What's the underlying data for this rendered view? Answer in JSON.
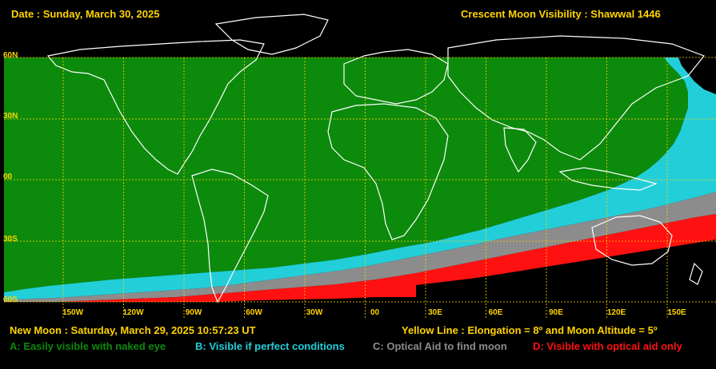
{
  "header": {
    "date_text": "Date : Sunday, March 30, 2025",
    "title": "Crescent Moon Visibility : Shawwal  1446"
  },
  "footer": {
    "new_moon": "New Moon : Saturday, March 29, 2025  10:57:23  UT",
    "yellow_line": "Yellow Line : Elongation = 8º  and Moon Altitude = 5º"
  },
  "legend": [
    {
      "label": "A: Easily visible with naked eye",
      "color": "#0c8a0c"
    },
    {
      "label": "B: Visible if perfect conditions",
      "color": "#22cfd9"
    },
    {
      "label": "C: Optical Aid to find moon",
      "color": "#8c8c8c"
    },
    {
      "label": "D: Visible with optical aid only",
      "color": "#ff1111"
    }
  ],
  "map": {
    "lat_labels": [
      "60N",
      "30N",
      "00",
      "30S",
      "60S"
    ],
    "lon_labels": [
      "150W",
      "120W",
      "90W",
      "60W",
      "30W",
      "00",
      "30E",
      "60E",
      "90E",
      "120E",
      "150E"
    ],
    "grid_color": "#ffd400",
    "land_outline_color": "#ffffff",
    "background_color": "#000000"
  }
}
